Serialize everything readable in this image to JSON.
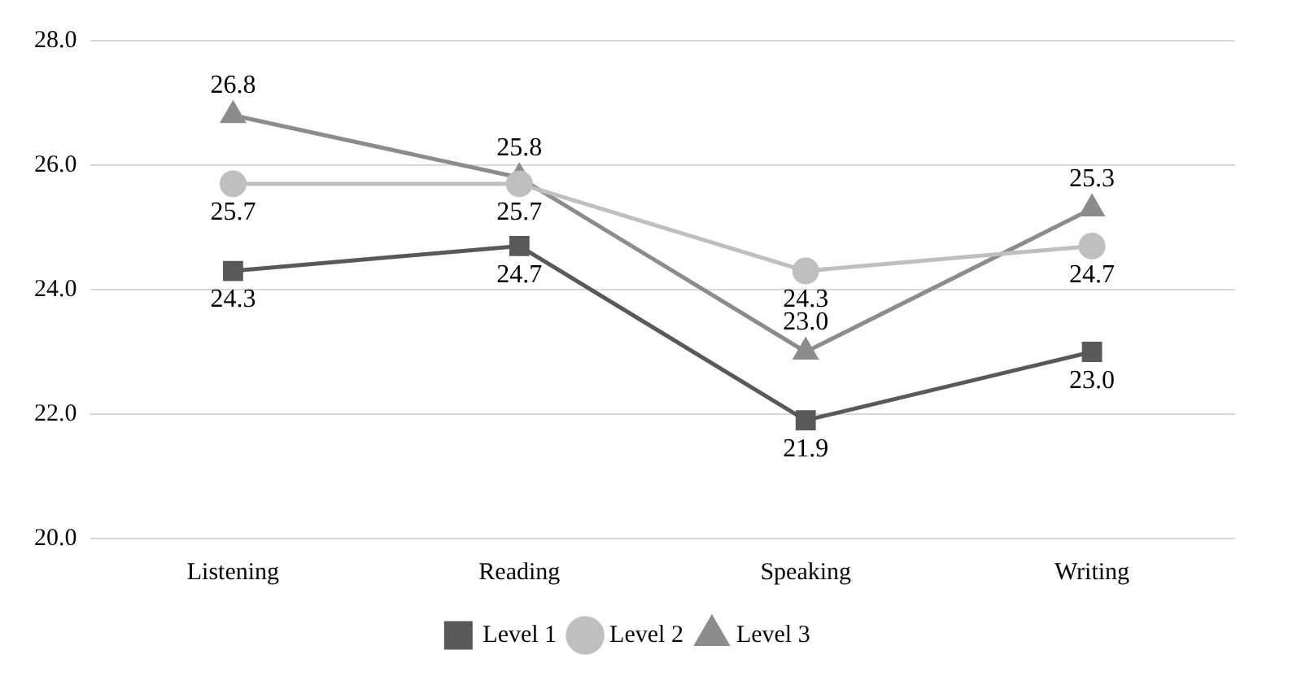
{
  "chart_data": {
    "type": "line",
    "categories": [
      "Listening",
      "Reading",
      "Speaking",
      "Writing"
    ],
    "series": [
      {
        "name": "Level 1",
        "color": "#595959",
        "marker": "square",
        "values": [
          24.3,
          24.7,
          21.9,
          23.0
        ],
        "value_labels": [
          "24.3",
          "24.7",
          "21.9",
          "23.0"
        ]
      },
      {
        "name": "Level 2",
        "color": "#bfbfbf",
        "marker": "circle",
        "values": [
          25.7,
          25.7,
          24.3,
          24.7
        ],
        "value_labels": [
          "25.7",
          "25.7",
          "24.3",
          "24.7"
        ]
      },
      {
        "name": "Level 3",
        "color": "#8c8c8c",
        "marker": "triangle",
        "values": [
          26.8,
          25.8,
          23.0,
          25.3
        ],
        "value_labels": [
          "26.8",
          "25.8",
          "23.0",
          "25.3"
        ]
      }
    ],
    "ylim": [
      20,
      28
    ],
    "yticks": [
      {
        "value": 20,
        "label": "20.0"
      },
      {
        "value": 22,
        "label": "22.0"
      },
      {
        "value": 24,
        "label": "24.0"
      },
      {
        "value": 26,
        "label": "26.0"
      },
      {
        "value": 28,
        "label": "28.0"
      }
    ],
    "grid": "y",
    "legend": "bottom",
    "line_style": "solid"
  }
}
